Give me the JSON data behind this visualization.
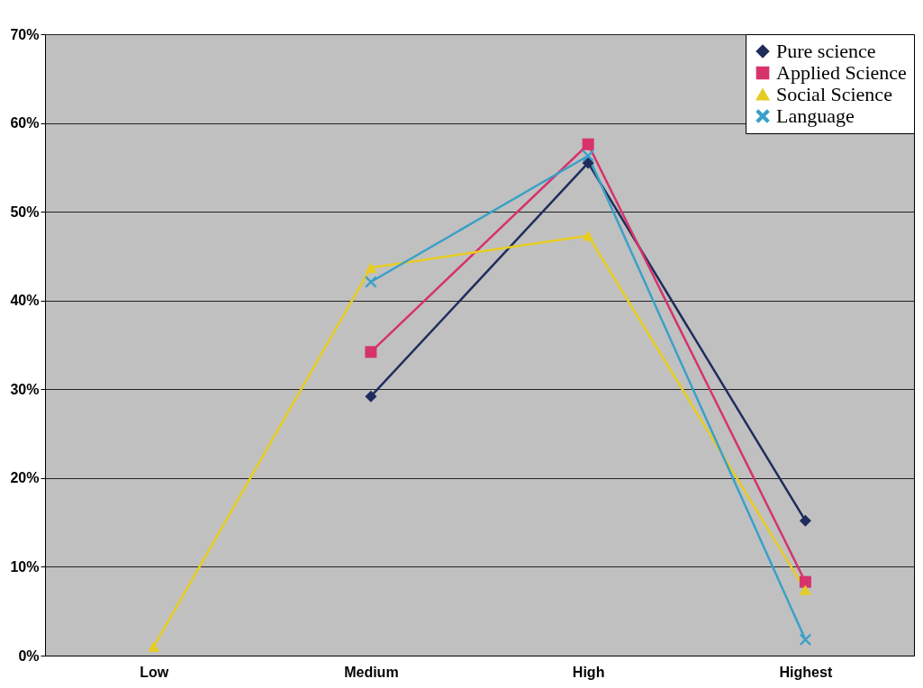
{
  "chart_data": {
    "type": "line",
    "categories": [
      "Low",
      "Medium",
      "High",
      "Highest"
    ],
    "series": [
      {
        "name": "Pure science",
        "color": "#1f2d5c",
        "marker": "diamond",
        "values": [
          null,
          29.2,
          55.5,
          15.2
        ]
      },
      {
        "name": "Applied Science",
        "color": "#d6336c",
        "marker": "square",
        "values": [
          null,
          34.2,
          57.6,
          8.3
        ]
      },
      {
        "name": "Social Science",
        "color": "#e6cc22",
        "marker": "triangle",
        "values": [
          1.0,
          43.7,
          47.3,
          7.4
        ]
      },
      {
        "name": "Language",
        "color": "#3aa0c8",
        "marker": "cross",
        "values": [
          null,
          42.1,
          56.3,
          1.8
        ]
      }
    ],
    "ylim": [
      0,
      70
    ],
    "yticks": [
      {
        "value": 0,
        "label": "0%"
      },
      {
        "value": 10,
        "label": "10%"
      },
      {
        "value": 20,
        "label": "20%"
      },
      {
        "value": 30,
        "label": "30%"
      },
      {
        "value": 40,
        "label": "40%"
      },
      {
        "value": 50,
        "label": "50%"
      },
      {
        "value": 60,
        "label": "60%"
      },
      {
        "value": 70,
        "label": "70%"
      }
    ],
    "grid": "y",
    "legend": "top right"
  }
}
